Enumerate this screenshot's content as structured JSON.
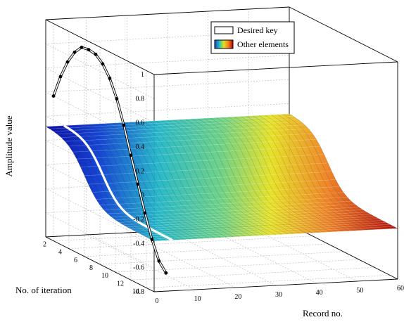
{
  "chart_data": {
    "type": "surface3d",
    "title": "",
    "xlabel": "Record no.",
    "ylabel": "No. of iteration",
    "zlabel": "Amplitude value",
    "x_ticks": [
      "0",
      "10",
      "20",
      "30",
      "40",
      "50",
      "60"
    ],
    "y_ticks": [
      "2",
      "4",
      "6",
      "8",
      "10",
      "12",
      "14"
    ],
    "z_ticks": [
      "-0.8",
      "-0.6",
      "-0.4",
      "-0.2",
      "0",
      "0.2",
      "0.4",
      "0.6",
      "0.8",
      "1"
    ],
    "xlim": [
      0,
      60
    ],
    "ylim": [
      1,
      15
    ],
    "zlim": [
      -0.8,
      1
    ],
    "grid": true,
    "legend": {
      "position": "top-right",
      "entries": [
        {
          "label": "Desired key",
          "color": "#ffffff",
          "style": "white-line"
        },
        {
          "label": "Other elements",
          "color": "rainbow",
          "style": "colormap-patch"
        }
      ]
    },
    "series": [
      {
        "name": "Desired key",
        "description_free": true,
        "x": [
          0,
          1,
          2,
          3,
          4,
          5,
          6,
          7,
          8,
          9,
          10,
          11,
          12,
          13,
          14,
          15,
          16
        ],
        "z": [
          0.4,
          0.58,
          0.72,
          0.82,
          0.88,
          0.88,
          0.86,
          0.8,
          0.7,
          0.55,
          0.35,
          0.12,
          -0.1,
          -0.32,
          -0.52,
          -0.68,
          -0.76
        ]
      }
    ],
    "surface": {
      "colormap": "jet",
      "z_high": 0.12,
      "z_low": -0.38,
      "transition_center_iteration": 6
    }
  }
}
